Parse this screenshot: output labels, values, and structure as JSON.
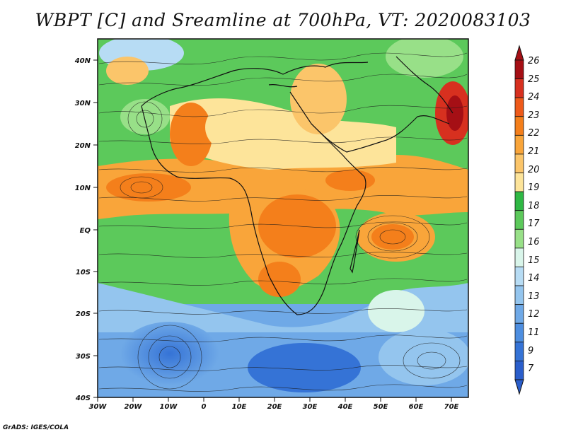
{
  "title": "WBPT [C] and Sreamline at 700hPa, VT: 2020083103",
  "credit": "GrADS: IGES/COLA",
  "map": {
    "lon_labels": [
      "30W",
      "20W",
      "10W",
      "0",
      "10E",
      "20E",
      "30E",
      "40E",
      "50E",
      "60E",
      "70E"
    ],
    "lat_labels": [
      "40N",
      "30N",
      "20N",
      "10N",
      "EQ",
      "10S",
      "20S",
      "30S",
      "40S"
    ],
    "lon_range": [
      -30,
      75
    ],
    "lat_range": [
      -40,
      45
    ]
  },
  "colorbar": {
    "labels": [
      "26",
      "25",
      "24",
      "23",
      "22",
      "21",
      "20",
      "19",
      "18",
      "17",
      "16",
      "15",
      "14",
      "13",
      "12",
      "11",
      "9",
      "7"
    ],
    "colors": [
      "#a50f15",
      "#d7301f",
      "#ee5a1a",
      "#f47f1b",
      "#f9a53a",
      "#fbc56a",
      "#fde49a",
      "#2fb844",
      "#5cc95b",
      "#98e088",
      "#d9f5ea",
      "#b7dcf4",
      "#94c5ee",
      "#6fa9e7",
      "#4d8ee0",
      "#3573d6",
      "#2a5ecb"
    ]
  },
  "legend_icons": [
    "arrow-up-icon",
    "arrow-down-icon"
  ]
}
